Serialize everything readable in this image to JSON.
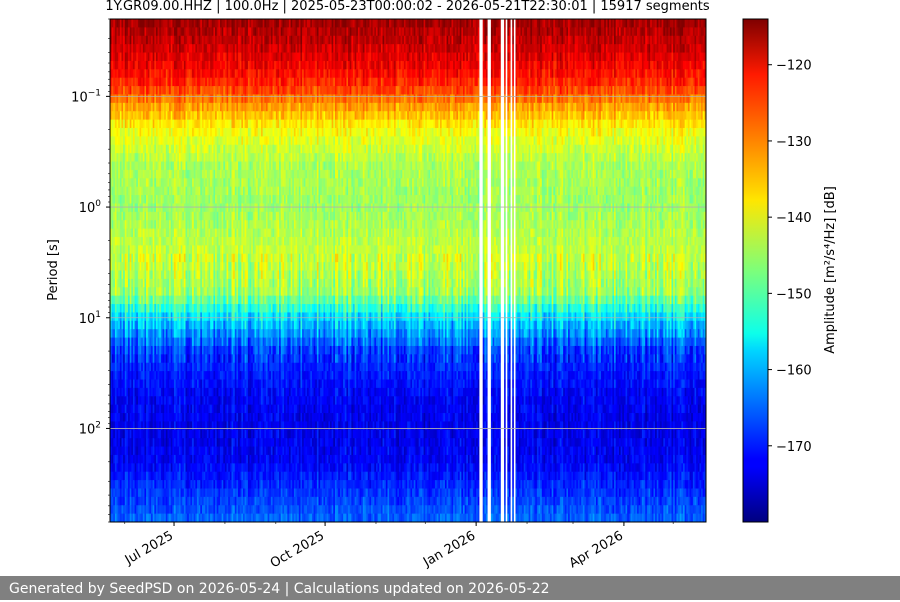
{
  "chart_data": {
    "type": "heatmap",
    "title": "1Y.GR09.00.HHZ | 100.0Hz | 2025-05-23T00:00:02 - 2026-05-21T22:30:01 | 15917 segments",
    "xlabel": "",
    "ylabel": "Period [s]",
    "y_scale": "log",
    "y_inverted": true,
    "ylim": [
      0.02,
      700
    ],
    "y_ticks": [
      {
        "value": 0.1,
        "label_base": "10",
        "label_exp": "−1"
      },
      {
        "value": 1,
        "label_base": "10",
        "label_exp": "0"
      },
      {
        "value": 10,
        "label_base": "10",
        "label_exp": "1"
      },
      {
        "value": 100,
        "label_base": "10",
        "label_exp": "2"
      }
    ],
    "x_start": "2025-05-23",
    "x_end": "2026-05-21",
    "x_ticks": [
      {
        "date": "2025-07-01",
        "label": "Jul 2025"
      },
      {
        "date": "2025-10-01",
        "label": "Oct 2025"
      },
      {
        "date": "2026-01-01",
        "label": "Jan 2026"
      },
      {
        "date": "2026-04-01",
        "label": "Apr 2026"
      }
    ],
    "grid": true,
    "colormap": "jet",
    "colorbar": {
      "label": "Amplitude [m²/s⁴/Hz] [dB]",
      "range": [
        -180,
        -114
      ],
      "ticks": [
        -120,
        -130,
        -140,
        -150,
        -160,
        -170
      ]
    },
    "data_gaps": [
      {
        "start": "2026-01-03",
        "end": "2026-01-05"
      },
      {
        "start": "2026-01-08",
        "end": "2026-01-10"
      },
      {
        "start": "2026-01-16",
        "end": "2026-01-18"
      },
      {
        "start": "2026-01-19",
        "end": "2026-01-20"
      },
      {
        "start": "2026-01-22",
        "end": "2026-01-23"
      },
      {
        "start": "2026-01-24",
        "end": "2026-01-25"
      }
    ],
    "amplitude_profile": [
      {
        "period": 0.02,
        "db": -116
      },
      {
        "period": 0.03,
        "db": -118
      },
      {
        "period": 0.05,
        "db": -121
      },
      {
        "period": 0.08,
        "db": -125
      },
      {
        "period": 0.12,
        "db": -132
      },
      {
        "period": 0.2,
        "db": -139
      },
      {
        "period": 0.4,
        "db": -144
      },
      {
        "period": 1,
        "db": -145
      },
      {
        "period": 3,
        "db": -142
      },
      {
        "period": 6,
        "db": -145
      },
      {
        "period": 10,
        "db": -157
      },
      {
        "period": 20,
        "db": -168
      },
      {
        "period": 50,
        "db": -172
      },
      {
        "period": 100,
        "db": -173
      },
      {
        "period": 200,
        "db": -172
      },
      {
        "period": 400,
        "db": -168
      },
      {
        "period": 700,
        "db": -165
      }
    ]
  },
  "footer": "Generated by SeedPSD on 2026-05-24 | Calculations updated on 2026-05-22"
}
